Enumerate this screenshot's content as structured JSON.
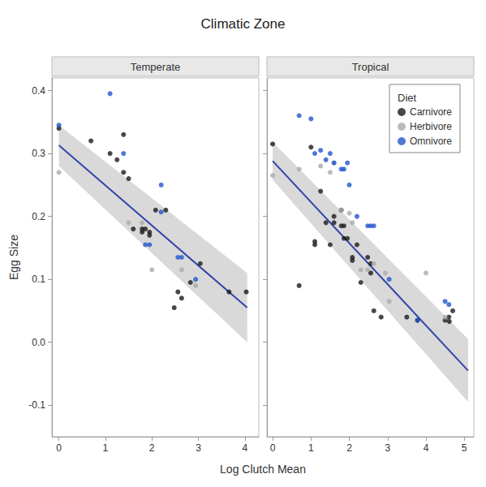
{
  "chart_data": {
    "type": "scatter",
    "title": "Climatic Zone",
    "xlabel": "Log Clutch Mean",
    "ylabel": "Egg Size",
    "legend": "upper right",
    "legend_title": "Diet",
    "grid": false,
    "ylim": [
      -0.15,
      0.42
    ],
    "yticks": [
      -0.1,
      {
        "value": 0,
        "label": "0.0"
      },
      0.1,
      0.2,
      0.3,
      0.4
    ],
    "panels": [
      {
        "title": "Temperate",
        "xlim": [
          -0.15,
          4.3
        ],
        "xticks": [
          0,
          1,
          2,
          3,
          4
        ],
        "series": [
          {
            "type": "band",
            "color": "#c0c0c0",
            "x": [
              0.0,
              4.05
            ],
            "lower": [
              0.28,
              0.0
            ],
            "upper": [
              0.345,
              0.11
            ]
          },
          {
            "type": "line",
            "color": "#3344aa",
            "x": [
              0.0,
              4.05
            ],
            "values": [
              0.313,
              0.055
            ]
          },
          {
            "name": "Carnivore",
            "type": "scatter",
            "color": "#1a1a1a",
            "x": [
              0.0,
              0.69,
              1.1,
              1.25,
              1.39,
              1.39,
              1.5,
              1.6,
              1.79,
              1.79,
              1.86,
              1.95,
              1.95,
              2.08,
              2.3,
              2.48,
              2.56,
              2.64,
              2.83,
              3.04,
              3.66,
              4.03
            ],
            "values": [
              0.34,
              0.32,
              0.3,
              0.29,
              0.33,
              0.27,
              0.26,
              0.18,
              0.18,
              0.175,
              0.18,
              0.175,
              0.17,
              0.21,
              0.21,
              0.055,
              0.08,
              0.07,
              0.095,
              0.125,
              0.08,
              0.08
            ]
          },
          {
            "name": "Herbivore",
            "type": "scatter",
            "color": "#aaaaaa",
            "x": [
              0.0,
              1.5,
              1.79,
              2.0,
              2.64,
              2.94
            ],
            "values": [
              0.27,
              0.19,
              0.19,
              0.115,
              0.115,
              0.09
            ]
          },
          {
            "name": "Omnivore",
            "type": "scatter",
            "color": "#2255cc",
            "x": [
              0.0,
              1.1,
              1.39,
              1.86,
              1.95,
              2.2,
              2.2,
              2.56,
              2.64,
              2.94
            ],
            "values": [
              0.345,
              0.395,
              0.3,
              0.155,
              0.155,
              0.207,
              0.25,
              0.135,
              0.135,
              0.1
            ]
          }
        ]
      },
      {
        "title": "Tropical",
        "xlim": [
          -0.15,
          5.25
        ],
        "xticks": [
          0,
          1,
          2,
          3,
          4,
          5
        ],
        "tick_labels": "x",
        "series": [
          {
            "type": "band",
            "color": "#c0c0c0",
            "x": [
              0.0,
              5.1
            ],
            "lower": [
              0.258,
              -0.095
            ],
            "upper": [
              0.318,
              0.005
            ]
          },
          {
            "type": "line",
            "color": "#3344aa",
            "x": [
              0.0,
              5.1
            ],
            "values": [
              0.288,
              -0.045
            ]
          },
          {
            "name": "Carnivore",
            "type": "scatter",
            "color": "#1a1a1a",
            "x": [
              0.0,
              0.69,
              1.0,
              1.1,
              1.1,
              1.25,
              1.39,
              1.5,
              1.6,
              1.6,
              1.79,
              1.79,
              1.86,
              1.86,
              1.95,
              2.08,
              2.08,
              2.2,
              2.3,
              2.48,
              2.56,
              2.56,
              2.64,
              2.83,
              3.5,
              3.78,
              4.5,
              4.6,
              4.61,
              4.7
            ],
            "values": [
              0.315,
              0.09,
              0.31,
              0.155,
              0.16,
              0.24,
              0.19,
              0.155,
              0.2,
              0.19,
              0.21,
              0.185,
              0.185,
              0.165,
              0.165,
              0.135,
              0.13,
              0.155,
              0.095,
              0.135,
              0.125,
              0.11,
              0.05,
              0.04,
              0.04,
              0.035,
              0.035,
              0.04,
              0.033,
              0.05
            ]
          },
          {
            "name": "Herbivore",
            "type": "scatter",
            "color": "#aaaaaa",
            "x": [
              0.0,
              0.69,
              1.25,
              1.5,
              1.6,
              1.79,
              2.0,
              2.08,
              2.3,
              2.48,
              2.64,
              2.94,
              3.04,
              4.0,
              4.5
            ],
            "values": [
              0.265,
              0.275,
              0.28,
              0.27,
              0.285,
              0.21,
              0.205,
              0.19,
              0.115,
              0.115,
              0.125,
              0.11,
              0.065,
              0.11,
              0.04
            ]
          },
          {
            "name": "Omnivore",
            "type": "scatter",
            "color": "#2255cc",
            "x": [
              0.69,
              1.0,
              1.1,
              1.25,
              1.39,
              1.5,
              1.6,
              1.79,
              1.86,
              1.95,
              2.0,
              2.2,
              2.48,
              2.56,
              2.64,
              3.04,
              3.78,
              4.5,
              4.6
            ],
            "values": [
              0.36,
              0.355,
              0.3,
              0.305,
              0.29,
              0.3,
              0.285,
              0.275,
              0.275,
              0.285,
              0.25,
              0.2,
              0.185,
              0.185,
              0.185,
              0.1,
              0.035,
              0.065,
              0.06
            ]
          }
        ]
      }
    ]
  }
}
